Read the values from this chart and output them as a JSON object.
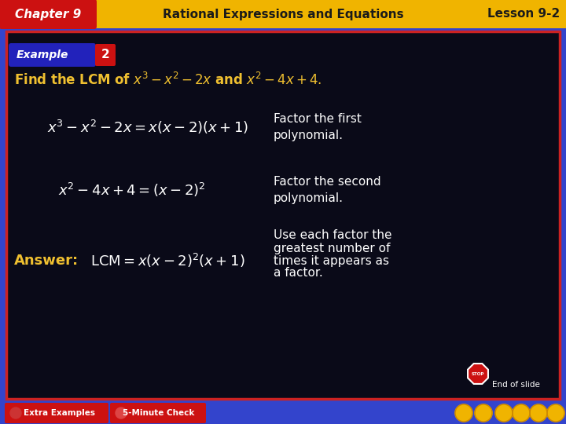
{
  "header_bg": "#F0B400",
  "header_text_color": "#1a1a1a",
  "chapter_bg": "#CC1111",
  "chapter_text": "Chapter 9",
  "header_center_text": "Rational Expressions and Equations",
  "lesson_text": "Lesson 9-2",
  "example_bg_blue": "#2222bb",
  "example_bg_red": "#cc1111",
  "example_label": "Example",
  "example_num": "2",
  "main_bg": "#080810",
  "content_bg": "#0a0a18",
  "border_color_red": "#cc2222",
  "border_color_blue": "#3344cc",
  "find_text_color": "#F0C030",
  "eq1_desc1": "Factor the first",
  "eq1_desc2": "polynomial.",
  "eq2_desc1": "Factor the second",
  "eq2_desc2": "polynomial.",
  "answer_label": "Answer:",
  "answer_desc1": "Use each factor the",
  "answer_desc2": "greatest number of",
  "answer_desc3": "times it appears as",
  "answer_desc4": "a factor.",
  "end_text": "End of slide",
  "bottom_bar_color": "#2233bb",
  "extra_examples_text": "Extra Examples",
  "minute_check_text": "5-Minute Check",
  "formula_color": "#ffffff",
  "answer_color": "#F0C030",
  "desc_color": "#ffffff",
  "nav_btn_color": "#F0B400"
}
